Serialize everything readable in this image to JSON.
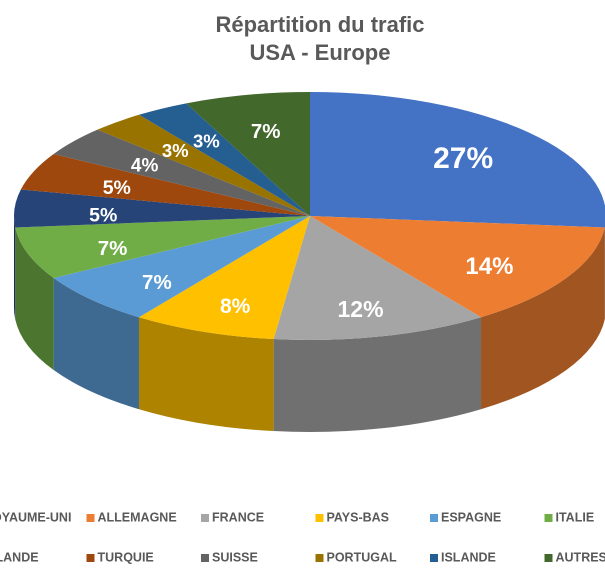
{
  "chart_data": {
    "type": "pie",
    "title": "Répartition du trafic",
    "subtitle": "USA - Europe",
    "categories": [
      "ROYAUME-UNI",
      "ALLEMAGNE",
      "FRANCE",
      "PAYS-BAS",
      "ESPAGNE",
      "ITALIE",
      "IRLANDE",
      "TURQUIE",
      "SUISSE",
      "PORTUGAL",
      "ISLANDE",
      "AUTRES"
    ],
    "values": [
      27,
      14,
      12,
      8,
      7,
      7,
      5,
      5,
      4,
      3,
      3,
      7
    ],
    "value_labels": [
      "27%",
      "14%",
      "12%",
      "8%",
      "7%",
      "7%",
      "5%",
      "5%",
      "4%",
      "3%",
      "3%",
      "7%"
    ],
    "colors": [
      "#4472C4",
      "#ED7D31",
      "#A5A5A5",
      "#FFC000",
      "#5B9BD5",
      "#70AD47",
      "#264478",
      "#9E480E",
      "#636363",
      "#997300",
      "#255E91",
      "#43682B"
    ],
    "legend": "bottom"
  }
}
